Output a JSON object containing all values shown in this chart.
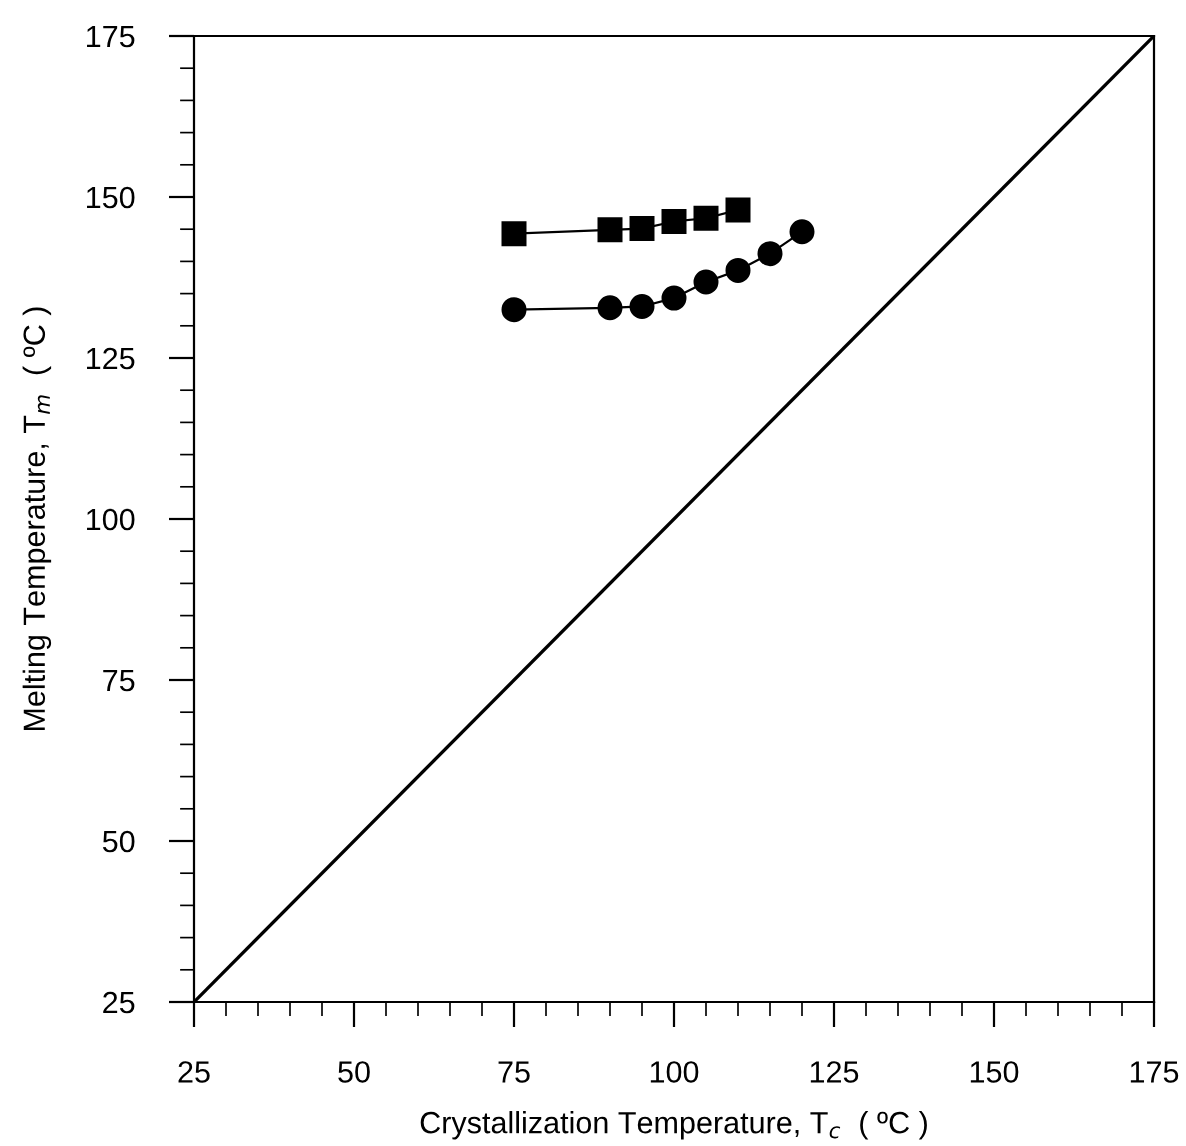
{
  "chart_data": {
    "type": "line",
    "xlabel": "Crystallization Temperature, T$_{c}$  ( ºC )",
    "ylabel": "Melting Temperature, T$_{m}$  ( ºC )",
    "xlim": [
      25,
      175
    ],
    "ylim": [
      25,
      175
    ],
    "xticks": [
      25,
      50,
      75,
      100,
      125,
      150,
      175
    ],
    "yticks": [
      25,
      50,
      75,
      100,
      125,
      150,
      175
    ],
    "grid": false,
    "legend": false,
    "series": [
      {
        "marker": "square",
        "color": "#000000",
        "x": [
          75,
          90,
          95,
          100,
          105,
          110
        ],
        "values": [
          144.3,
          144.9,
          145.1,
          146.2,
          146.7,
          148.0
        ]
      },
      {
        "marker": "circle",
        "color": "#000000",
        "x": [
          75,
          90,
          95,
          100,
          105,
          110,
          115,
          120
        ],
        "values": [
          132.5,
          132.8,
          133.0,
          134.3,
          136.8,
          138.6,
          141.2,
          144.6
        ]
      },
      {
        "marker": "none",
        "color": "#000000",
        "x": [
          25,
          175
        ],
        "values": [
          25,
          175
        ]
      }
    ]
  }
}
